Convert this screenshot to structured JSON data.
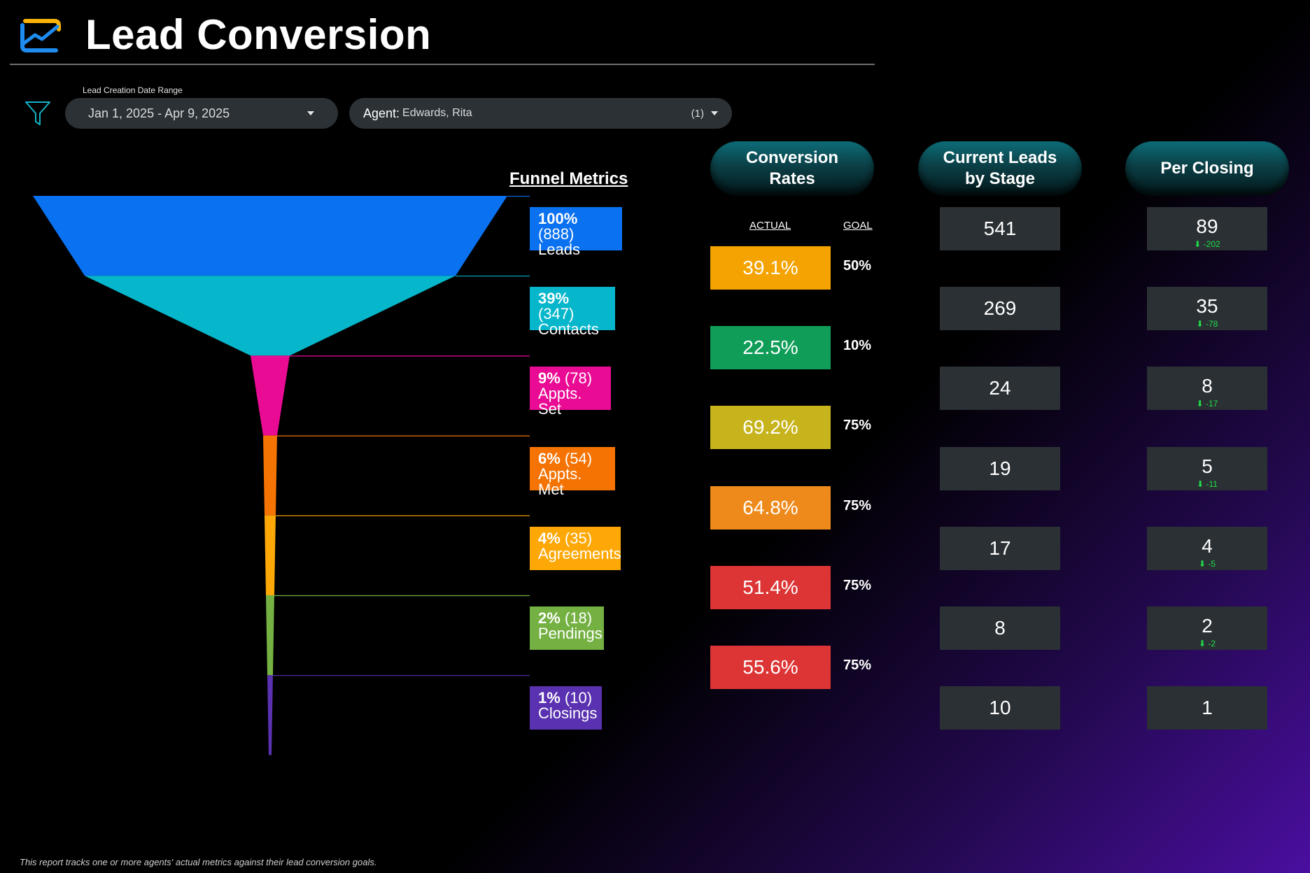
{
  "header": {
    "title": "Lead Conversion",
    "logo_icon": "trend-chart-icon"
  },
  "filters": {
    "date_caption": "Lead Creation Date Range",
    "date_value": "Jan 1, 2025 - Apr 9, 2025",
    "agent_key": "Agent:",
    "agent_value": "Edwards, Rita",
    "agent_count": "(1)"
  },
  "funnel": {
    "title": "Funnel Metrics",
    "stages": [
      {
        "pct": "100%",
        "count": "(888)",
        "name": "Leads",
        "color": "#0a71f0"
      },
      {
        "pct": "39%",
        "count": "(347)",
        "name": "Contacts",
        "color": "#06b6cb"
      },
      {
        "pct": "9%",
        "count": "(78)",
        "name": "Appts. Set",
        "color": "#ea0b94"
      },
      {
        "pct": "6%",
        "count": "(54)",
        "name": "Appts. Met",
        "color": "#f57302"
      },
      {
        "pct": "4%",
        "count": "(35)",
        "name": "Agreements",
        "color": "#fda807"
      },
      {
        "pct": "2%",
        "count": "(18)",
        "name": "Pendings",
        "color": "#74b142"
      },
      {
        "pct": "1%",
        "count": "(10)",
        "name": "Closings",
        "color": "#5a31b0"
      }
    ]
  },
  "conversion": {
    "title": "Conversion Rates",
    "actual_label": "ACTUAL",
    "goal_label": "GOAL",
    "rows": [
      {
        "actual": "39.1%",
        "goal": "50%",
        "color": "#f4a300"
      },
      {
        "actual": "22.5%",
        "goal": "10%",
        "color": "#0f9d58"
      },
      {
        "actual": "69.2%",
        "goal": "75%",
        "color": "#c7b41d"
      },
      {
        "actual": "64.8%",
        "goal": "75%",
        "color": "#ee8a1b"
      },
      {
        "actual": "51.4%",
        "goal": "75%",
        "color": "#dd3535"
      },
      {
        "actual": "55.6%",
        "goal": "75%",
        "color": "#dd3535"
      }
    ]
  },
  "current_leads": {
    "title": "Current Leads by Stage",
    "values": [
      "541",
      "269",
      "24",
      "19",
      "17",
      "8",
      "10"
    ]
  },
  "per_closing": {
    "title": "Per Closing",
    "rows": [
      {
        "value": "89",
        "delta": "⬇ -202"
      },
      {
        "value": "35",
        "delta": "⬇ -78"
      },
      {
        "value": "8",
        "delta": "⬇ -17"
      },
      {
        "value": "5",
        "delta": "⬇ -11"
      },
      {
        "value": "4",
        "delta": "⬇ -5"
      },
      {
        "value": "2",
        "delta": "⬇ -2"
      },
      {
        "value": "1",
        "delta": ""
      }
    ]
  },
  "footnote": "This report tracks one or more agents' actual metrics against their lead conversion goals."
}
